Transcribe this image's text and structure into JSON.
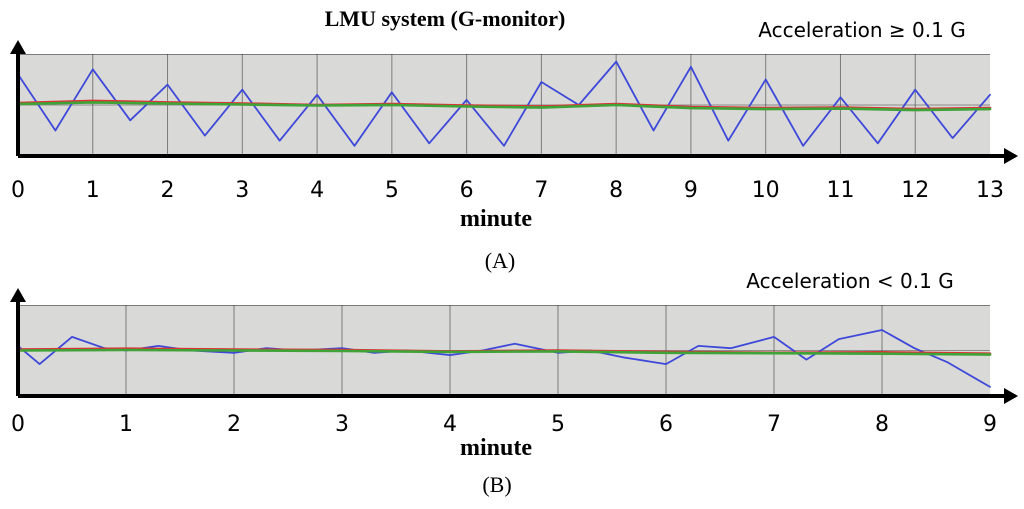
{
  "title": "LMU system (G-monitor)",
  "chart_data": [
    {
      "type": "line",
      "panel_label": "(A)",
      "annotation": "Acceleration ≥ 0.1 G",
      "xlabel": "minute",
      "ylabel": "",
      "xlim": [
        0,
        13
      ],
      "ylim": [
        -1,
        1
      ],
      "x_ticks": [
        "0",
        "1",
        "2",
        "3",
        "4",
        "5",
        "6",
        "7",
        "8",
        "9",
        "10",
        "11",
        "12",
        "13"
      ],
      "grid": true,
      "colors": {
        "blue": "#3f49d9",
        "red": "#d83535",
        "green": "#3fa338",
        "panel": "#d9d9d7",
        "grid": "#303030",
        "axis": "#000000"
      },
      "series": [
        {
          "color": "#3f49d9",
          "x": [
            0,
            0.5,
            1,
            1.5,
            2,
            2.5,
            3,
            3.5,
            4,
            4.5,
            5,
            5.5,
            6,
            6.5,
            7,
            7.5,
            8,
            8.5,
            9,
            9.5,
            10,
            10.5,
            11,
            11.5,
            12,
            12.5,
            13
          ],
          "y": [
            0.6,
            -0.5,
            0.7,
            -0.3,
            0.4,
            -0.6,
            0.3,
            -0.7,
            0.2,
            -0.8,
            0.25,
            -0.75,
            0.1,
            -0.8,
            0.45,
            0.0,
            0.85,
            -0.5,
            0.75,
            -0.7,
            0.5,
            -0.8,
            0.15,
            -0.75,
            0.3,
            -0.65,
            0.2
          ]
        },
        {
          "color": "#d83535",
          "x": [
            0,
            1,
            2,
            3,
            4,
            5,
            6,
            7,
            8,
            9,
            10,
            11,
            12,
            13
          ],
          "y": [
            0.04,
            0.08,
            0.05,
            0.03,
            0.0,
            0.02,
            -0.01,
            -0.03,
            0.02,
            -0.04,
            -0.06,
            -0.05,
            -0.08,
            -0.06
          ]
        },
        {
          "color": "#3fa338",
          "x": [
            0,
            1,
            2,
            3,
            4,
            5,
            6,
            7,
            8,
            9,
            10,
            11,
            12,
            13
          ],
          "y": [
            0.02,
            0.05,
            0.03,
            0.01,
            -0.01,
            0.0,
            -0.03,
            -0.05,
            0.0,
            -0.06,
            -0.08,
            -0.07,
            -0.1,
            -0.08
          ]
        }
      ]
    },
    {
      "type": "line",
      "panel_label": "(B)",
      "annotation": "Acceleration < 0.1 G",
      "xlabel": "minute",
      "ylabel": "",
      "xlim": [
        0,
        9
      ],
      "ylim": [
        -1,
        1
      ],
      "x_ticks": [
        "0",
        "1",
        "2",
        "3",
        "4",
        "5",
        "6",
        "7",
        "8",
        "9"
      ],
      "grid": true,
      "colors": {
        "blue": "#3f49d9",
        "red": "#d83535",
        "green": "#3fa338",
        "panel": "#d9d9d7",
        "grid": "#303030",
        "axis": "#000000"
      },
      "series": [
        {
          "color": "#3f49d9",
          "x": [
            0,
            0.2,
            0.5,
            0.8,
            1,
            1.3,
            1.6,
            2,
            2.3,
            2.6,
            3,
            3.3,
            3.6,
            4,
            4.3,
            4.6,
            5,
            5.3,
            5.6,
            6,
            6.3,
            6.6,
            7,
            7.3,
            7.6,
            8,
            8.3,
            8.6,
            9
          ],
          "y": [
            0.1,
            -0.3,
            0.3,
            0.05,
            0.0,
            0.1,
            0.0,
            -0.05,
            0.05,
            0.0,
            0.05,
            -0.05,
            0.0,
            -0.1,
            0.0,
            0.15,
            -0.05,
            0.0,
            -0.15,
            -0.3,
            0.1,
            0.05,
            0.3,
            -0.2,
            0.25,
            0.45,
            0.05,
            -0.25,
            -0.8
          ]
        },
        {
          "color": "#d83535",
          "x": [
            0,
            1,
            2,
            3,
            4,
            5,
            6,
            7,
            8,
            9
          ],
          "y": [
            0.02,
            0.04,
            0.02,
            0.01,
            -0.02,
            0.0,
            -0.03,
            -0.05,
            -0.04,
            -0.07
          ]
        },
        {
          "color": "#3fa338",
          "x": [
            0,
            1,
            2,
            3,
            4,
            5,
            6,
            7,
            8,
            9
          ],
          "y": [
            0.0,
            0.01,
            0.0,
            -0.01,
            -0.03,
            -0.02,
            -0.05,
            -0.06,
            -0.07,
            -0.09
          ]
        }
      ]
    }
  ]
}
